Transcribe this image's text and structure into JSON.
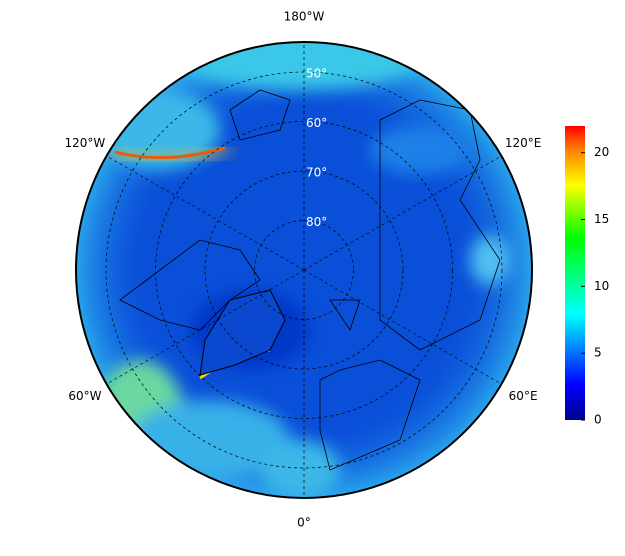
{
  "map": {
    "longitudes": [
      {
        "value": 180,
        "label": "180°W"
      },
      {
        "value": 120,
        "label": "120°E"
      },
      {
        "value": 60,
        "label": "60°E"
      },
      {
        "value": 0,
        "label": "0°"
      },
      {
        "value": -60,
        "label": "60°W"
      },
      {
        "value": -120,
        "label": "120°W"
      }
    ],
    "latitudes": [
      {
        "value": 50,
        "label": "50°"
      },
      {
        "value": 60,
        "label": "60°"
      },
      {
        "value": 70,
        "label": "70°"
      },
      {
        "value": 80,
        "label": "80°"
      }
    ]
  },
  "colorbar": {
    "ylim": [
      0,
      22
    ],
    "yticks": [
      0,
      5,
      10,
      15,
      20
    ]
  }
}
